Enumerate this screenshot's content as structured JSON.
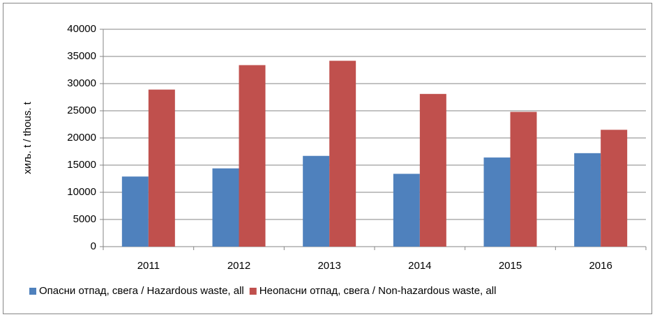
{
  "chart_data": {
    "type": "bar",
    "y_label": "хиљ. t / thous. t",
    "categories": [
      "2011",
      "2012",
      "2013",
      "2014",
      "2015",
      "2016"
    ],
    "series": [
      {
        "name": "Опасни отпад, свега / Hazardous waste, all",
        "color": "#4f81bd",
        "values": [
          12900,
          14400,
          16700,
          13400,
          16400,
          17200
        ]
      },
      {
        "name": "Неопасни отпад, свега / Non-hazardous waste, all",
        "color": "#c0504d",
        "values": [
          28900,
          33400,
          34200,
          28100,
          24800,
          21500
        ]
      }
    ],
    "ylim": [
      0,
      40000
    ],
    "yticks": [
      0,
      5000,
      10000,
      15000,
      20000,
      25000,
      30000,
      35000,
      40000
    ],
    "grid": true,
    "legend": "bottom"
  }
}
